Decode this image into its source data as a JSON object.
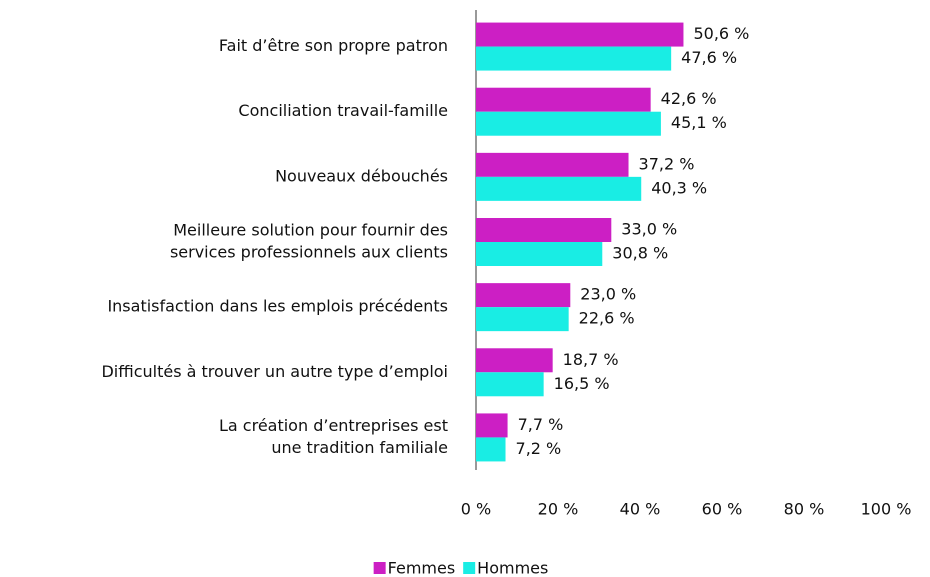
{
  "chart_data": {
    "type": "barh",
    "categories": [
      [
        "Fait d’être son propre patron"
      ],
      [
        "Conciliation travail-famille"
      ],
      [
        "Nouveaux débouchés"
      ],
      [
        "Meilleure solution pour fournir des",
        "services professionnels aux clients"
      ],
      [
        "Insatisfaction dans les emplois précédents"
      ],
      [
        "Difficultés à trouver un autre type d’emploi"
      ],
      [
        "La création d’entreprises est",
        "une tradition familiale"
      ]
    ],
    "series": [
      {
        "name": "Femmes",
        "color": "#cc1fc4",
        "values": [
          50.6,
          42.6,
          37.2,
          33.0,
          23.0,
          18.7,
          7.7
        ],
        "value_labels": [
          "50,6 %",
          "42,6 %",
          "37,2 %",
          "33,0 %",
          "23,0 %",
          "18,7 %",
          "7,7 %"
        ]
      },
      {
        "name": "Hommes",
        "color": "#19ede4",
        "values": [
          47.6,
          45.1,
          40.3,
          30.8,
          22.6,
          16.5,
          7.2
        ],
        "value_labels": [
          "47,6 %",
          "45,1 %",
          "40,3 %",
          "30,8 %",
          "22,6 %",
          "16,5 %",
          "7,2 %"
        ]
      }
    ],
    "xlim": [
      0,
      100
    ],
    "xticks": [
      {
        "value": 0,
        "label": "0 %"
      },
      {
        "value": 20,
        "label": "20 %"
      },
      {
        "value": 40,
        "label": "40 %"
      },
      {
        "value": 60,
        "label": "60 %"
      },
      {
        "value": 80,
        "label": "80 %"
      },
      {
        "value": 100,
        "label": "100 %"
      }
    ],
    "grid": false,
    "legend": "bottom"
  }
}
